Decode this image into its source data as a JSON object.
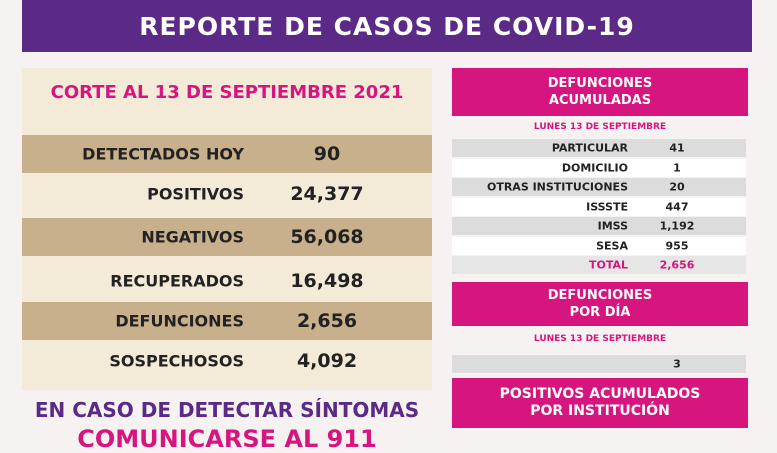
{
  "header": {
    "title": "REPORTE DE CASOS DE COVID-19"
  },
  "left_panel": {
    "title": "CORTE AL 13 DE SEPTIEMBRE 2021",
    "rows": [
      {
        "label": "DETECTADOS HOY",
        "value": "90"
      },
      {
        "label": "POSITIVOS",
        "value": "24,377"
      },
      {
        "label": "NEGATIVOS",
        "value": "56,068"
      },
      {
        "label": "RECUPERADOS",
        "value": "16,498"
      },
      {
        "label": "DEFUNCIONES",
        "value": "2,656"
      },
      {
        "label": "SOSPECHOSOS",
        "value": "4,092"
      }
    ]
  },
  "footer": {
    "lines": [
      "EN CASO DE DETECTAR SÍNTOMAS",
      "COMUNICARSE AL 911"
    ]
  },
  "right_panel": {
    "accumulated": {
      "title": [
        "DEFUNCIONES",
        "ACUMULADAS"
      ],
      "date": "LUNES 13 DE SEPTIEMBRE",
      "rows": [
        {
          "label": "PARTICULAR",
          "value": "41"
        },
        {
          "label": "DOMICILIO",
          "value": "1"
        },
        {
          "label": "OTRAS INSTITUCIONES",
          "value": "20"
        },
        {
          "label": "ISSSTE",
          "value": "447"
        },
        {
          "label": "IMSS",
          "value": "1,192"
        },
        {
          "label": "SESA",
          "value": "955"
        }
      ],
      "total": {
        "label": "TOTAL",
        "value": "2,656"
      }
    },
    "daily": {
      "title": [
        "DEFUNCIONES",
        "POR DÍA"
      ],
      "date": "LUNES 13 DE SEPTIEMBRE",
      "value": "3"
    },
    "by_institution": {
      "title": [
        "POSITIVOS ACUMULADOS",
        "POR INSTITUCIÓN"
      ]
    }
  }
}
